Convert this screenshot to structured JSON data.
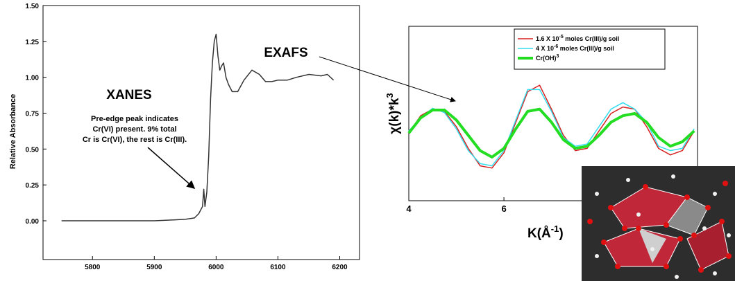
{
  "chart_data": [
    {
      "type": "line",
      "ylabel": "Relative Absorbance",
      "annotations": [
        "XANES",
        "Pre-edge peak indicates",
        "Cr(VI) present.  9% total",
        "Cr is Cr(VI), the rest is Cr(III).",
        "EXAFS"
      ],
      "xlim": [
        5720,
        6232
      ],
      "xticks": [
        5800,
        5900,
        6000,
        6100,
        6200
      ],
      "ylim": [
        -0.27,
        1.5
      ],
      "yticks": [
        {
          "value": 0,
          "label": "0.00"
        },
        {
          "value": 0.25,
          "label": "0.25"
        },
        {
          "value": 0.5,
          "label": "0.50"
        },
        {
          "value": 0.75,
          "label": "0.75"
        },
        {
          "value": 1,
          "label": "1.00"
        },
        {
          "value": 1.25,
          "label": "1.25"
        },
        {
          "value": 1.5,
          "label": "1.50"
        }
      ],
      "x": [
        5750,
        5800,
        5900,
        5950,
        5965,
        5972,
        5978,
        5980,
        5982,
        5985,
        5988,
        5991,
        5994,
        5997,
        6000,
        6003,
        6006,
        6009,
        6012,
        6016,
        6020,
        6026,
        6035,
        6045,
        6058,
        6070,
        6080,
        6090,
        6100,
        6115,
        6130,
        6150,
        6170,
        6180,
        6190
      ],
      "series": [
        {
          "color": "#333333",
          "values": [
            0.0,
            0.0,
            0.0,
            0.01,
            0.02,
            0.05,
            0.1,
            0.22,
            0.1,
            0.2,
            0.45,
            0.85,
            1.1,
            1.25,
            1.3,
            1.15,
            1.05,
            1.08,
            1.1,
            1.0,
            0.95,
            0.9,
            0.9,
            0.98,
            1.05,
            1.02,
            0.97,
            0.97,
            0.98,
            0.98,
            1.0,
            1.02,
            1.01,
            1.02,
            0.98
          ]
        }
      ]
    },
    {
      "type": "line",
      "ylabel": [
        "χ(k)*k",
        "3"
      ],
      "xlabel": [
        "K(Å",
        "-1",
        ")"
      ],
      "xlim": [
        4,
        10.07
      ],
      "xticks": [
        4,
        6
      ],
      "ylim": [
        -2,
        2
      ],
      "x": [
        4.0,
        4.25,
        4.5,
        4.75,
        5.0,
        5.25,
        5.5,
        5.75,
        6.0,
        6.25,
        6.5,
        6.75,
        7.0,
        7.25,
        7.5,
        7.75,
        8.0,
        8.25,
        8.5,
        8.75,
        9.0,
        9.25,
        9.5,
        9.75,
        10.0
      ],
      "series": [
        {
          "name": [
            "1.6 X 10",
            "-5",
            " moles Cr(III)/g soil"
          ],
          "color": "#d62020",
          "width": 1.5,
          "values": [
            -0.45,
            -0.05,
            0.1,
            0.05,
            -0.3,
            -0.8,
            -1.2,
            -1.25,
            -0.9,
            -0.2,
            0.5,
            0.65,
            0.1,
            -0.5,
            -0.85,
            -0.8,
            -0.4,
            0.0,
            0.15,
            0.1,
            -0.3,
            -0.8,
            -0.95,
            -0.85,
            -0.4
          ]
        },
        {
          "name": [
            "4 X 10",
            "-6",
            " moles Cr(III)/g soil"
          ],
          "color": "#33ddee",
          "width": 1.5,
          "values": [
            -0.4,
            -0.1,
            0.12,
            0.02,
            -0.35,
            -0.85,
            -1.15,
            -1.2,
            -0.85,
            -0.15,
            0.55,
            0.55,
            0.05,
            -0.55,
            -0.75,
            -0.7,
            -0.3,
            0.1,
            0.25,
            0.1,
            -0.2,
            -0.75,
            -0.85,
            -0.8,
            -0.35
          ]
        },
        {
          "name": [
            "Cr(OH)",
            "3",
            ""
          ],
          "color": "#22dd22",
          "width": 4,
          "values": [
            -0.45,
            -0.1,
            0.08,
            0.08,
            -0.15,
            -0.5,
            -0.85,
            -1.0,
            -0.8,
            -0.35,
            0.05,
            0.1,
            -0.2,
            -0.6,
            -0.8,
            -0.75,
            -0.5,
            -0.2,
            -0.05,
            0.0,
            -0.2,
            -0.55,
            -0.75,
            -0.65,
            -0.4
          ]
        }
      ]
    }
  ]
}
